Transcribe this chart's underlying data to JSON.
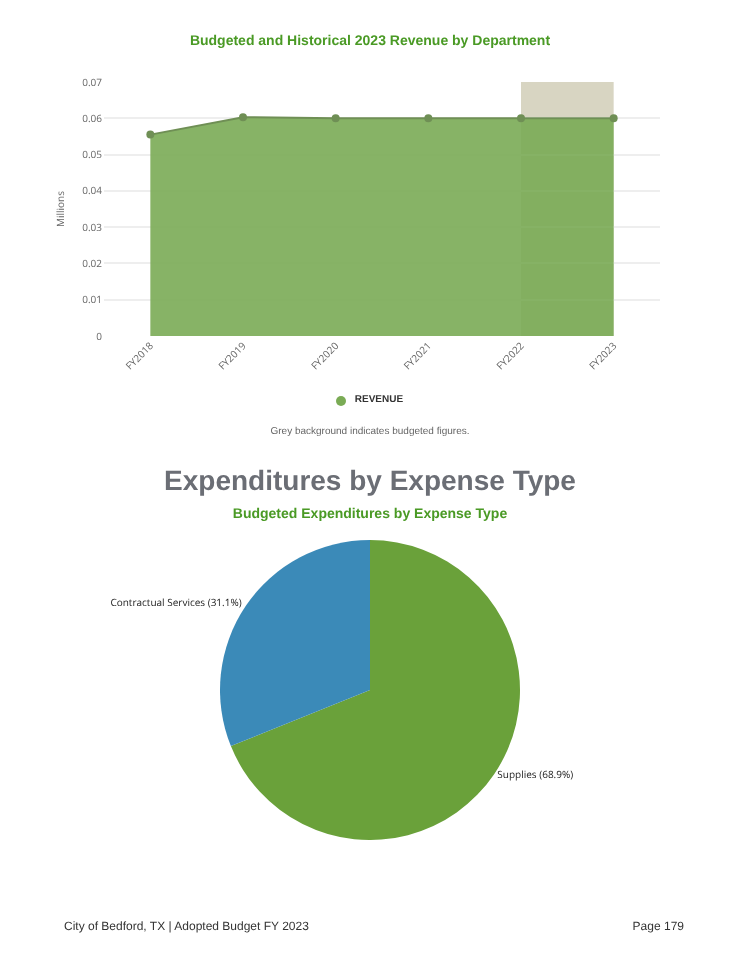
{
  "chart_data": [
    {
      "type": "area",
      "title": "Budgeted and Historical 2023 Revenue by Department",
      "ylabel": "Millions",
      "categories": [
        "FY2018",
        "FY2019",
        "FY2020",
        "FY2021",
        "FY2022",
        "FY2023"
      ],
      "series": [
        {
          "name": "REVENUE",
          "color": "#7aab55",
          "values": [
            0.0555,
            0.0603,
            0.06,
            0.06,
            0.06,
            0.06
          ]
        }
      ],
      "ylim": [
        0,
        0.07
      ],
      "yticks": [
        0,
        0.01,
        0.02,
        0.03,
        0.04,
        0.05,
        0.06,
        0.07
      ],
      "grid": "y",
      "marker": "circle",
      "legend": "bottom",
      "bands": [
        {
          "axis": "x",
          "from": "FY2022",
          "to": "FY2023",
          "color": "#d8d5c2"
        }
      ],
      "annotations": [
        "Grey background indicates budgeted figures."
      ]
    },
    {
      "type": "pie",
      "title": "Expenditures by Expense Type",
      "subtitle": "Budgeted Expenditures by Expense Type",
      "categories": [
        "Supplies (68.9%)",
        "Contractual Services (31.1%)"
      ],
      "values": [
        68.9,
        31.1
      ],
      "colors": [
        "#6aa13a",
        "#3b8ab8"
      ],
      "annotations": [
        "City of Bedford, TX | Adopted Budget FY 2023",
        "Page 179"
      ]
    }
  ]
}
